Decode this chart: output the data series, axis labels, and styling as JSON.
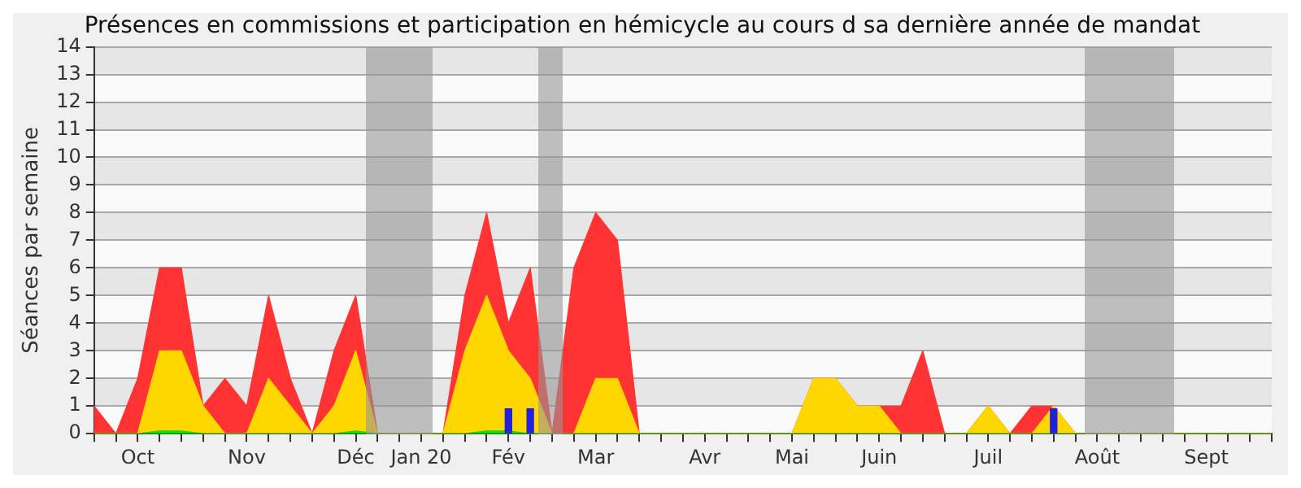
{
  "chart_data": {
    "type": "area",
    "title": "Présences en commissions et participation en hémicycle au cours d sa dernière année de mandat",
    "ylabel": "Séances par semaine",
    "categories": [
      null,
      null,
      "Oct",
      null,
      null,
      null,
      null,
      "Nov",
      null,
      null,
      null,
      null,
      "Déc",
      null,
      null,
      "Jan 20",
      null,
      null,
      null,
      "Fév",
      null,
      null,
      null,
      "Mar",
      null,
      null,
      null,
      null,
      "Avr",
      null,
      null,
      null,
      "Mai",
      null,
      null,
      null,
      "Juin",
      null,
      null,
      null,
      null,
      "Juil",
      null,
      null,
      null,
      null,
      "Août",
      null,
      null,
      null,
      null,
      "Sept",
      null,
      null,
      null
    ],
    "series": [
      {
        "color": "#ff3333",
        "values": [
          1,
          0,
          2,
          6,
          6,
          1,
          2,
          1,
          5,
          2,
          0,
          3,
          5,
          0,
          0,
          0,
          0,
          5,
          8,
          4,
          6,
          0,
          6,
          8,
          7,
          0,
          0,
          0,
          0,
          0,
          0,
          0,
          0,
          2,
          2,
          1,
          1,
          1,
          3,
          0,
          0,
          1,
          0,
          1,
          1,
          0,
          0,
          0,
          0,
          0,
          0,
          0,
          0,
          0,
          0
        ]
      },
      {
        "color": "#ffd700",
        "values": [
          0,
          0,
          0,
          3,
          3,
          1,
          0,
          0,
          2,
          1,
          0,
          1,
          3,
          0,
          0,
          0,
          0,
          3,
          5,
          3,
          2,
          0,
          0,
          2,
          2,
          0,
          0,
          0,
          0,
          0,
          0,
          0,
          0,
          2,
          2,
          1,
          1,
          0,
          0,
          0,
          0,
          1,
          0,
          0,
          1,
          0,
          0,
          0,
          0,
          0,
          0,
          0,
          0,
          0,
          0
        ]
      },
      {
        "color": "#00e600",
        "values": [
          0,
          0,
          0,
          0.1,
          0.1,
          0,
          0,
          0,
          0,
          0,
          0,
          0,
          0.1,
          0,
          0,
          0,
          0,
          0,
          0.1,
          0.1,
          0,
          0,
          0,
          0,
          0,
          0,
          0,
          0,
          0,
          0,
          0,
          0,
          0,
          0,
          0,
          0,
          0,
          0,
          0,
          0,
          0,
          0,
          0,
          0,
          0,
          0,
          0,
          0,
          0,
          0,
          0,
          0,
          0,
          0,
          0
        ]
      },
      {
        "type": "bar",
        "color": "#2020dd",
        "values": [
          null,
          null,
          null,
          null,
          null,
          null,
          null,
          null,
          null,
          null,
          null,
          null,
          null,
          null,
          null,
          null,
          null,
          null,
          null,
          0.9,
          0.9,
          null,
          null,
          null,
          null,
          null,
          null,
          null,
          null,
          null,
          null,
          null,
          null,
          null,
          null,
          null,
          null,
          null,
          null,
          null,
          null,
          null,
          null,
          null,
          0.9,
          null,
          null,
          null,
          null,
          null,
          null,
          null,
          null,
          null,
          null
        ]
      }
    ],
    "ylim": [
      0,
      14
    ],
    "yticks": [
      0,
      1,
      2,
      3,
      4,
      5,
      6,
      7,
      8,
      9,
      10,
      11,
      12,
      13,
      14
    ],
    "grid": "y",
    "legend": false
  }
}
